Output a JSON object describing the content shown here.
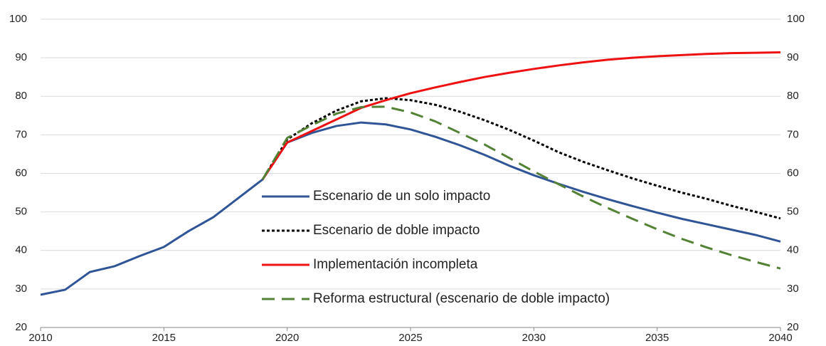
{
  "chart_data": {
    "type": "line",
    "x": [
      2010,
      2011,
      2012,
      2013,
      2014,
      2015,
      2016,
      2017,
      2018,
      2019,
      2020,
      2021,
      2022,
      2023,
      2024,
      2025,
      2026,
      2027,
      2028,
      2029,
      2030,
      2031,
      2032,
      2033,
      2034,
      2035,
      2036,
      2037,
      2038,
      2039,
      2040
    ],
    "xlim": [
      2010,
      2040
    ],
    "xticks": [
      2010,
      2015,
      2020,
      2025,
      2030,
      2035,
      2040
    ],
    "ylim": [
      20,
      100
    ],
    "yticks": [
      20,
      30,
      40,
      50,
      60,
      70,
      80,
      90,
      100
    ],
    "y2lim": [
      20,
      100
    ],
    "y2ticks": [
      20,
      30,
      40,
      50,
      60,
      70,
      80,
      90,
      100
    ],
    "grid": true,
    "series": [
      {
        "name": "Escenario de un solo impacto",
        "color": "#2f5597",
        "style": "solid",
        "values": [
          28.5,
          29.8,
          34.4,
          35.9,
          38.5,
          40.9,
          45,
          48.6,
          53.5,
          58.4,
          68,
          70.5,
          72.3,
          73.2,
          72.7,
          71.4,
          69.5,
          67.3,
          64.8,
          62,
          59.5,
          57.3,
          55.2,
          53.3,
          51.5,
          49.8,
          48.2,
          46.8,
          45.4,
          44,
          42.3
        ]
      },
      {
        "name": "Escenario de doble impacto",
        "color": "#000000",
        "style": "dotted",
        "values": [
          null,
          null,
          null,
          null,
          null,
          null,
          null,
          null,
          null,
          58.4,
          68.8,
          73,
          76.3,
          78.7,
          79.5,
          79,
          77.8,
          76,
          73.8,
          71.3,
          68.5,
          65.5,
          63,
          60.8,
          58.7,
          56.8,
          55,
          53.4,
          51.6,
          50,
          48.3
        ]
      },
      {
        "name": "Implementación incompleta",
        "color": "#ee1111",
        "style": "solid",
        "values": [
          null,
          null,
          null,
          null,
          null,
          null,
          null,
          null,
          null,
          58.4,
          68,
          71,
          74,
          77,
          79,
          80.8,
          82.3,
          83.7,
          85,
          86.1,
          87.1,
          88,
          88.8,
          89.5,
          90,
          90.4,
          90.7,
          91,
          91.2,
          91.3,
          91.4
        ]
      },
      {
        "name": "Reforma estructural (escenario de doble impacto)",
        "color": "#548235",
        "style": "dashed",
        "values": [
          null,
          null,
          null,
          null,
          null,
          null,
          null,
          null,
          null,
          58.4,
          69.2,
          72.5,
          75.5,
          77.2,
          77.3,
          75.8,
          73.5,
          70.5,
          67.5,
          64,
          60.5,
          57.2,
          54,
          51,
          48.2,
          45.5,
          43,
          40.8,
          38.8,
          37,
          35.3
        ]
      }
    ]
  }
}
